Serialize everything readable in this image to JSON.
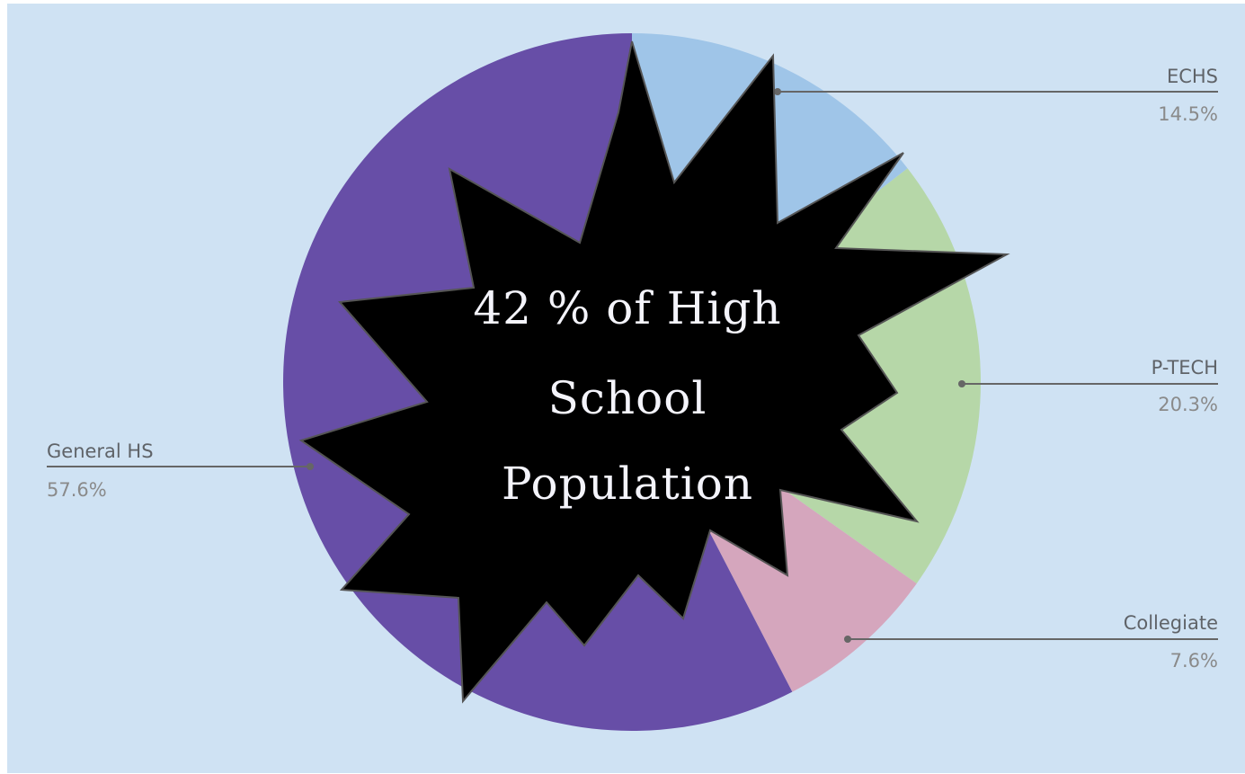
{
  "chart_data": {
    "type": "pie",
    "slices": [
      {
        "label": "ECHS",
        "value": 14.5,
        "display": "14.5%",
        "color": "#9fc5e8"
      },
      {
        "label": "P-TECH",
        "value": 20.3,
        "display": "20.3%",
        "color": "#b6d7a8"
      },
      {
        "label": "Collegiate",
        "value": 7.6,
        "display": "7.6%",
        "color": "#d5a6bd"
      },
      {
        "label": "General HS",
        "value": 57.6,
        "display": "57.6%",
        "color": "#674ea7"
      }
    ],
    "background": "#cfe2f3",
    "leader_line_color": "#666666"
  },
  "callout": {
    "lines": [
      "42 % of High",
      "School",
      "Population"
    ],
    "fill": "#000000",
    "text_color": "#f4f4fb"
  }
}
